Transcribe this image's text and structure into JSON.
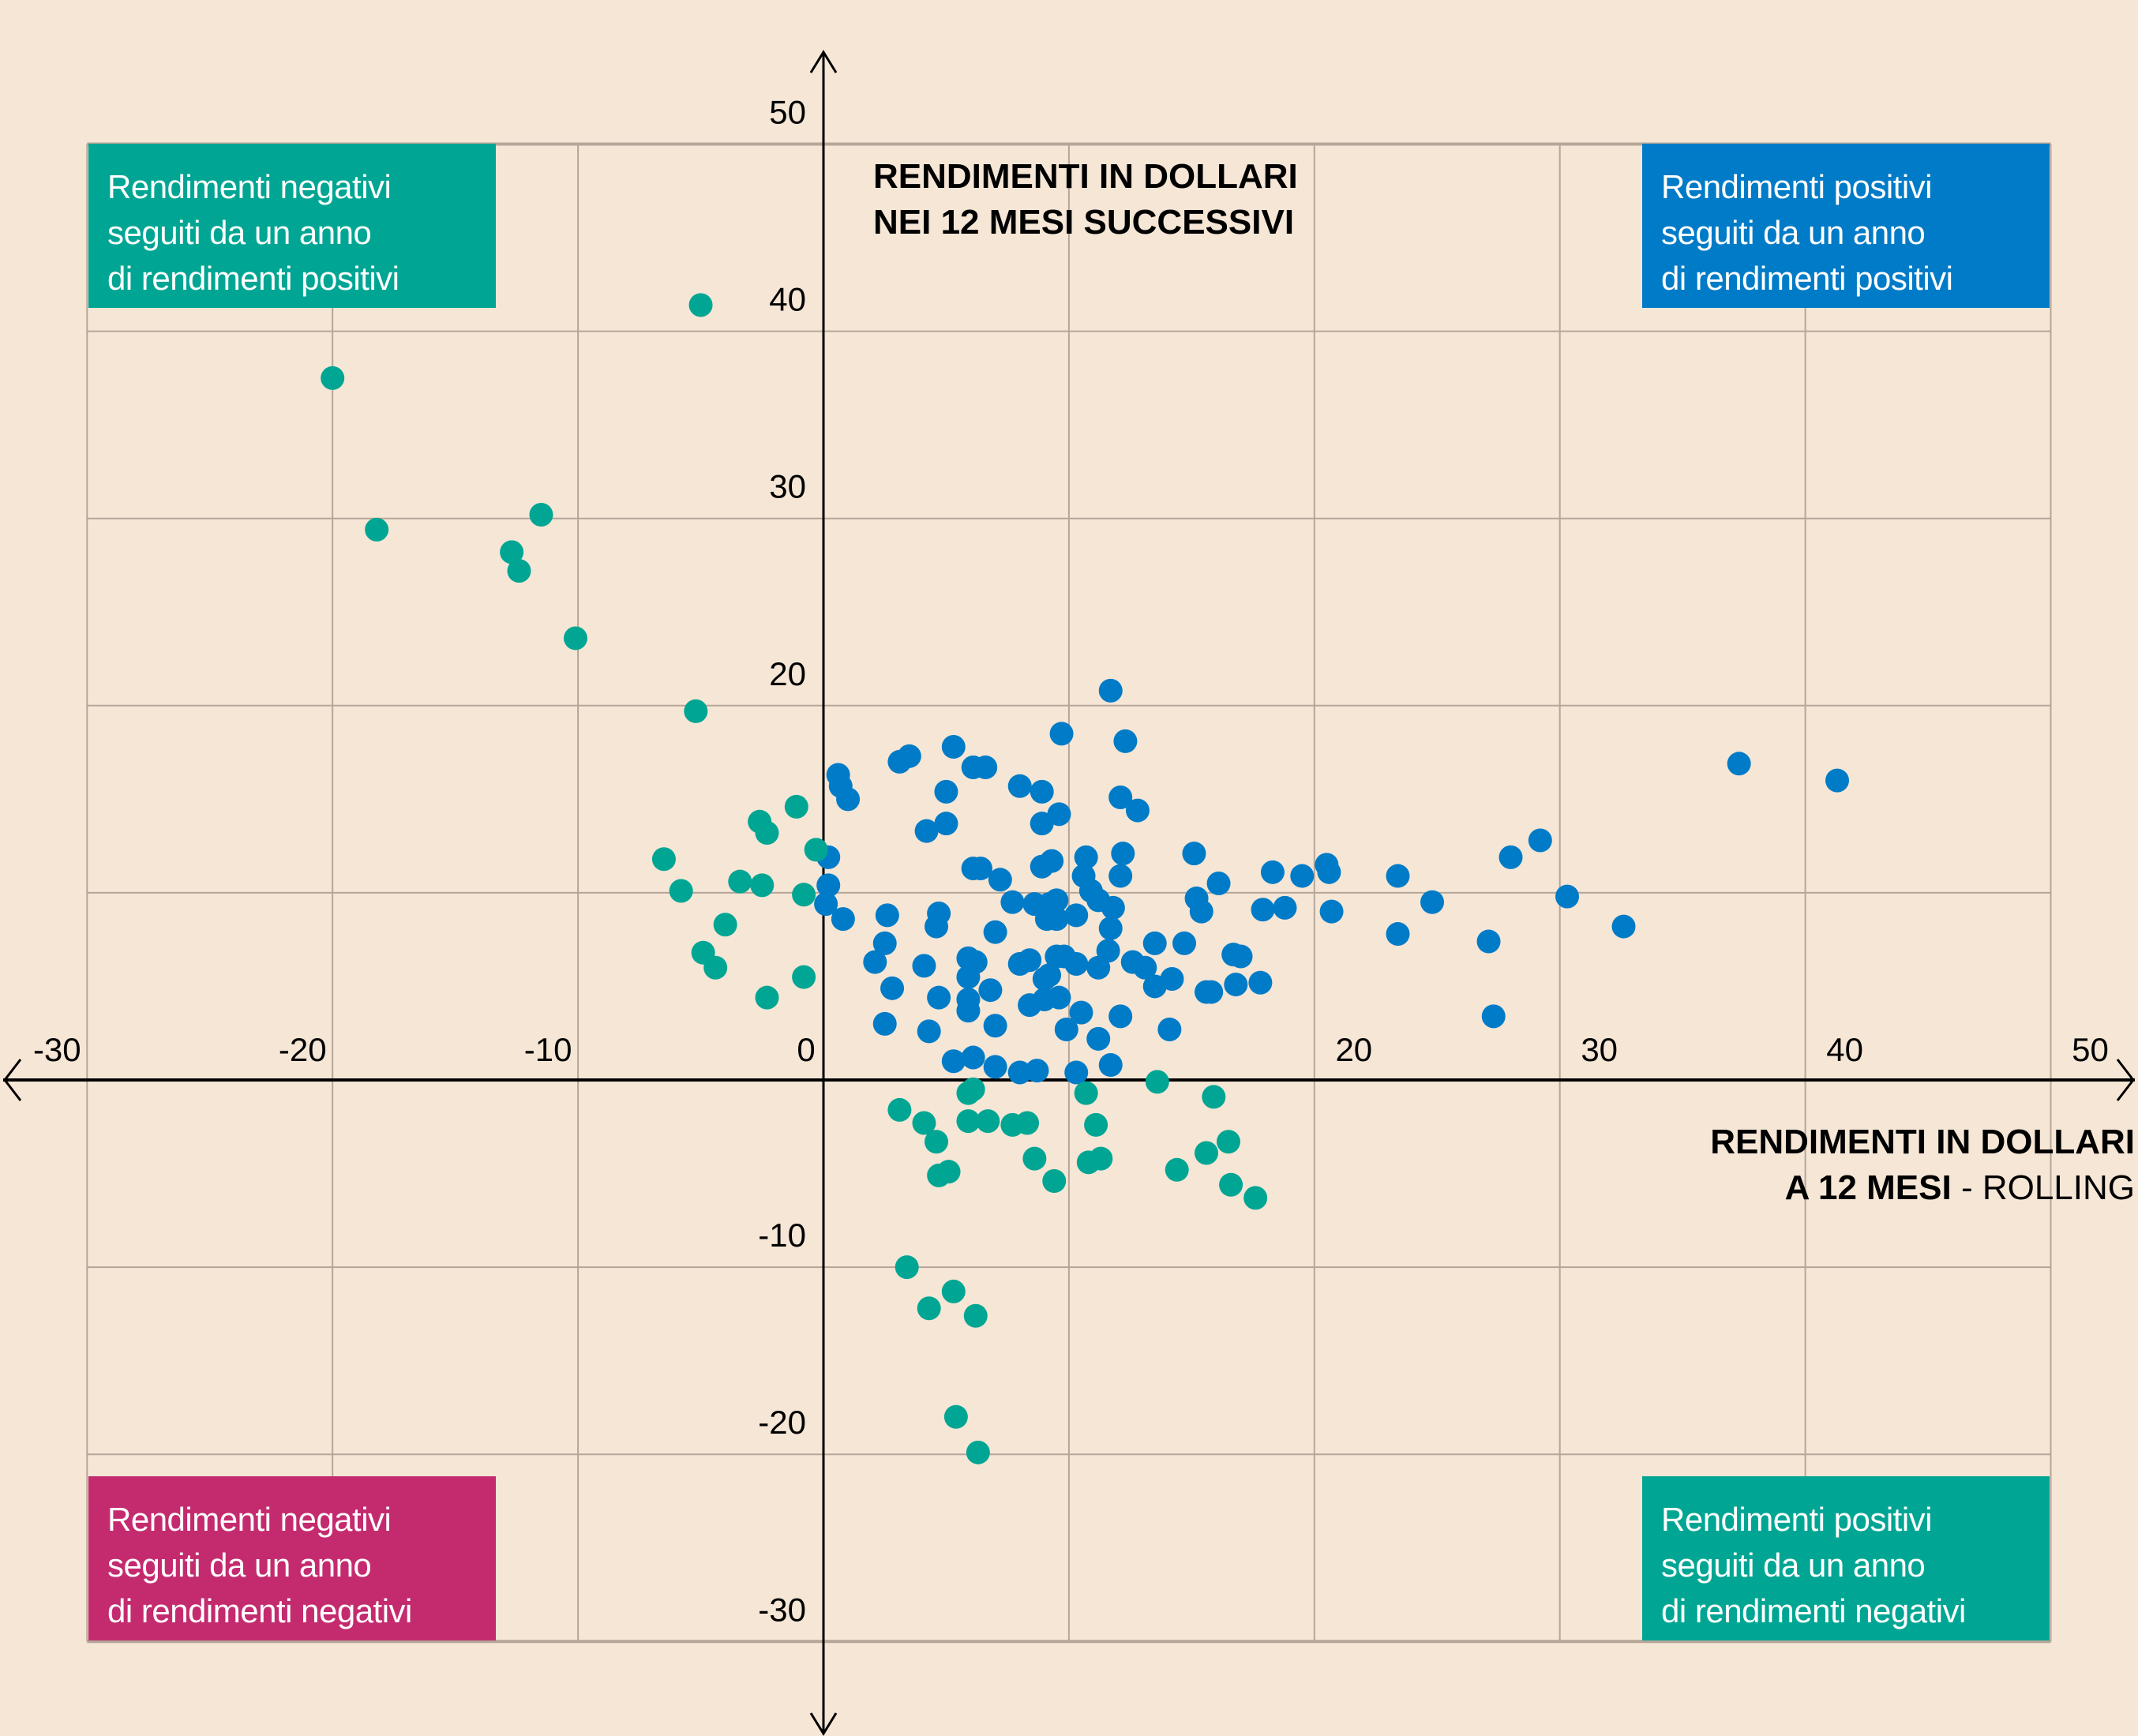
{
  "quadrants": {
    "top_left": {
      "lines": [
        "Rendimenti negativi",
        "seguiti da un anno",
        "di rendimenti positivi"
      ],
      "color": "#00a693"
    },
    "top_right": {
      "lines": [
        "Rendimenti positivi",
        "seguiti da un anno",
        "di rendimenti positivi"
      ],
      "color": "#007bc7"
    },
    "bottom_left": {
      "lines": [
        "Rendimenti negativi",
        "seguiti da un anno",
        "di rendimenti negativi"
      ],
      "color": "#c42b6f"
    },
    "bottom_right": {
      "lines": [
        "Rendimenti positivi",
        "seguiti da un anno",
        "di rendimenti negativi"
      ],
      "color": "#00a693"
    }
  },
  "y_axis_title": {
    "line1": "RENDIMENTI IN DOLLARI",
    "line2": "NEI 12 MESI SUCCESSIVI"
  },
  "x_axis_title": {
    "line1": "RENDIMENTI IN DOLLARI",
    "line2_bold": "A 12 MESI",
    "line2_sep": " - ",
    "line2_light": "ROLLING"
  },
  "chart_data": {
    "type": "scatter",
    "title": "",
    "xlabel": "RENDIMENTI IN DOLLARI A 12 MESI - ROLLING",
    "ylabel": "RENDIMENTI IN DOLLARI NEI 12 MESI SUCCESSIVI",
    "xlim": [
      -30,
      50
    ],
    "ylim": [
      -30,
      50
    ],
    "x_ticks": [
      -30,
      -20,
      -10,
      0,
      20,
      30,
      40,
      50
    ],
    "x_tick_labels": [
      "-30",
      "-20",
      "-10",
      "0",
      "20",
      "30",
      "40",
      "50"
    ],
    "y_ticks": [
      50,
      40,
      30,
      20,
      -10,
      -20,
      -30
    ],
    "y_tick_labels": [
      "50",
      "40",
      "30",
      "20",
      "-10",
      "-20",
      "-30"
    ],
    "grid": true,
    "series": [
      {
        "name": "Rendimenti positivi seguiti da un anno di rendimenti positivi",
        "color": "#007bc7",
        "points": [
          [
            11.7,
            20.8
          ],
          [
            9.7,
            18.5
          ],
          [
            12.3,
            18.1
          ],
          [
            5.3,
            17.8
          ],
          [
            3.5,
            17.3
          ],
          [
            3.1,
            17.0
          ],
          [
            0.6,
            16.3
          ],
          [
            6.1,
            16.7
          ],
          [
            6.6,
            16.7
          ],
          [
            0.7,
            15.7
          ],
          [
            8.0,
            15.7
          ],
          [
            5.0,
            15.4
          ],
          [
            8.9,
            15.4
          ],
          [
            1.0,
            15.0
          ],
          [
            12.1,
            15.1
          ],
          [
            9.6,
            14.2
          ],
          [
            12.8,
            14.4
          ],
          [
            8.9,
            13.7
          ],
          [
            5.0,
            13.7
          ],
          [
            4.2,
            13.3
          ],
          [
            37.3,
            16.9
          ],
          [
            41.3,
            16.0
          ],
          [
            29.2,
            12.8
          ],
          [
            28.0,
            11.9
          ],
          [
            0.2,
            11.9
          ],
          [
            12.2,
            12.1
          ],
          [
            15.1,
            12.1
          ],
          [
            10.7,
            11.9
          ],
          [
            9.3,
            11.7
          ],
          [
            8.9,
            11.4
          ],
          [
            6.1,
            11.3
          ],
          [
            6.4,
            11.3
          ],
          [
            18.3,
            11.1
          ],
          [
            20.5,
            11.5
          ],
          [
            20.6,
            11.1
          ],
          [
            19.5,
            10.9
          ],
          [
            23.4,
            10.9
          ],
          [
            7.2,
            10.7
          ],
          [
            10.6,
            10.9
          ],
          [
            12.1,
            10.9
          ],
          [
            16.1,
            10.5
          ],
          [
            0.2,
            10.4
          ],
          [
            10.9,
            10.1
          ],
          [
            30.3,
            9.8
          ],
          [
            15.2,
            9.7
          ],
          [
            9.5,
            9.6
          ],
          [
            11.2,
            9.6
          ],
          [
            7.7,
            9.5
          ],
          [
            8.6,
            9.4
          ],
          [
            9.2,
            9.4
          ],
          [
            24.8,
            9.5
          ],
          [
            0.1,
            9.4
          ],
          [
            11.8,
            9.2
          ],
          [
            17.9,
            9.1
          ],
          [
            18.8,
            9.2
          ],
          [
            20.7,
            9.0
          ],
          [
            15.4,
            9.0
          ],
          [
            10.3,
            8.8
          ],
          [
            2.6,
            8.8
          ],
          [
            0.8,
            8.6
          ],
          [
            4.7,
            8.9
          ],
          [
            9.1,
            8.6
          ],
          [
            9.5,
            8.6
          ],
          [
            11.7,
            8.1
          ],
          [
            32.6,
            8.2
          ],
          [
            4.6,
            8.2
          ],
          [
            23.4,
            7.8
          ],
          [
            7.0,
            7.9
          ],
          [
            27.1,
            7.4
          ],
          [
            2.5,
            7.3
          ],
          [
            13.5,
            7.3
          ],
          [
            14.7,
            7.3
          ],
          [
            11.6,
            6.9
          ],
          [
            16.7,
            6.7
          ],
          [
            17.0,
            6.6
          ],
          [
            9.5,
            6.6
          ],
          [
            9.8,
            6.6
          ],
          [
            5.9,
            6.5
          ],
          [
            8.4,
            6.4
          ],
          [
            2.1,
            6.3
          ],
          [
            6.2,
            6.3
          ],
          [
            8.0,
            6.2
          ],
          [
            10.3,
            6.2
          ],
          [
            12.6,
            6.3
          ],
          [
            11.2,
            6.0
          ],
          [
            4.1,
            6.1
          ],
          [
            13.1,
            6.0
          ],
          [
            9.2,
            5.6
          ],
          [
            5.9,
            5.5
          ],
          [
            14.2,
            5.4
          ],
          [
            9.0,
            5.4
          ],
          [
            17.8,
            5.2
          ],
          [
            16.8,
            5.1
          ],
          [
            13.5,
            5.0
          ],
          [
            15.6,
            4.7
          ],
          [
            15.8,
            4.7
          ],
          [
            2.8,
            4.9
          ],
          [
            6.8,
            4.8
          ],
          [
            4.7,
            4.4
          ],
          [
            5.9,
            4.3
          ],
          [
            9.6,
            4.4
          ],
          [
            8.4,
            4.0
          ],
          [
            9.0,
            4.3
          ],
          [
            5.9,
            3.7
          ],
          [
            10.5,
            3.6
          ],
          [
            12.1,
            3.4
          ],
          [
            27.3,
            3.4
          ],
          [
            2.5,
            3.0
          ],
          [
            7.0,
            2.9
          ],
          [
            4.3,
            2.6
          ],
          [
            14.1,
            2.7
          ],
          [
            9.9,
            2.7
          ],
          [
            11.2,
            2.2
          ],
          [
            5.3,
            1.0
          ],
          [
            6.1,
            1.2
          ],
          [
            7.0,
            0.7
          ],
          [
            8.7,
            0.5
          ],
          [
            8.0,
            0.4
          ],
          [
            11.7,
            0.8
          ],
          [
            10.3,
            0.4
          ]
        ]
      },
      {
        "name": "Rendimenti negativi seguiti da un anno di rendimenti positivi / Rendimenti positivi seguiti da un anno di rendimenti negativi",
        "color": "#00a693",
        "points": [
          [
            -5.0,
            41.4
          ],
          [
            -20.0,
            37.5
          ],
          [
            -18.2,
            29.4
          ],
          [
            -11.5,
            30.2
          ],
          [
            -12.7,
            28.2
          ],
          [
            -12.4,
            27.2
          ],
          [
            -10.1,
            23.6
          ],
          [
            -5.2,
            19.7
          ],
          [
            -1.1,
            14.6
          ],
          [
            -2.6,
            13.8
          ],
          [
            -2.3,
            13.2
          ],
          [
            -0.3,
            12.3
          ],
          [
            -6.5,
            11.8
          ],
          [
            -3.4,
            10.6
          ],
          [
            -2.5,
            10.4
          ],
          [
            -5.8,
            10.1
          ],
          [
            -0.8,
            9.9
          ],
          [
            -4.0,
            8.3
          ],
          [
            -4.9,
            6.8
          ],
          [
            -4.4,
            6.0
          ],
          [
            -0.8,
            5.5
          ],
          [
            -2.3,
            4.4
          ],
          [
            13.6,
            -0.1
          ],
          [
            6.1,
            -0.5
          ],
          [
            5.9,
            -0.7
          ],
          [
            10.7,
            -0.7
          ],
          [
            15.9,
            -0.9
          ],
          [
            3.1,
            -1.6
          ],
          [
            4.1,
            -2.3
          ],
          [
            5.9,
            -2.2
          ],
          [
            6.7,
            -2.2
          ],
          [
            7.7,
            -2.4
          ],
          [
            8.3,
            -2.3
          ],
          [
            11.1,
            -2.4
          ],
          [
            4.6,
            -3.3
          ],
          [
            16.5,
            -3.3
          ],
          [
            15.6,
            -3.9
          ],
          [
            8.6,
            -4.2
          ],
          [
            10.8,
            -4.4
          ],
          [
            11.3,
            -4.2
          ],
          [
            4.7,
            -5.1
          ],
          [
            5.1,
            -4.9
          ],
          [
            14.4,
            -4.8
          ],
          [
            9.4,
            -5.4
          ],
          [
            16.6,
            -5.6
          ],
          [
            17.6,
            -6.3
          ],
          [
            3.4,
            -10.0
          ],
          [
            5.3,
            -11.3
          ],
          [
            4.3,
            -12.2
          ],
          [
            6.2,
            -12.6
          ],
          [
            5.4,
            -18.0
          ],
          [
            6.3,
            -19.9
          ]
        ]
      }
    ]
  }
}
